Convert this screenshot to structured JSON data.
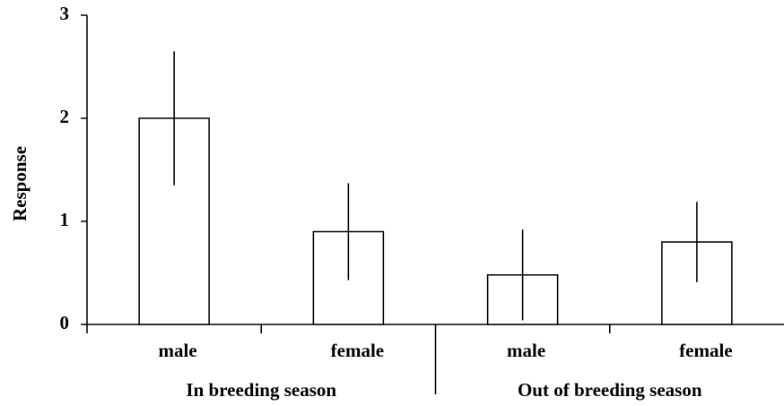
{
  "chart_data": {
    "type": "bar",
    "y_label": "Response",
    "groups": [
      {
        "name": "In breeding season",
        "categories": [
          "male",
          "female"
        ],
        "values": [
          2.0,
          0.9
        ],
        "errors": [
          0.65,
          0.47
        ]
      },
      {
        "name": "Out of breeding season",
        "categories": [
          "male",
          "female"
        ],
        "values": [
          0.48,
          0.8
        ],
        "errors": [
          0.44,
          0.39
        ]
      }
    ],
    "color": "#ffffff",
    "ylim": [
      0,
      3
    ],
    "yticks": [
      0,
      1,
      2,
      3
    ],
    "grid": false
  }
}
